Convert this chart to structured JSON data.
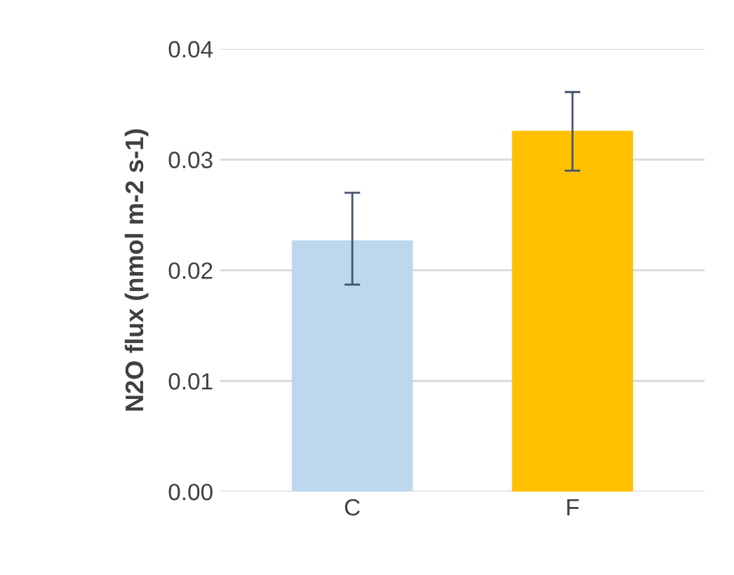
{
  "chart_data": {
    "type": "bar",
    "ylabel": "N2O flux (nmol m-2 s-1)",
    "categories": [
      "C",
      "F"
    ],
    "values": [
      0.0227,
      0.0326
    ],
    "colors": [
      "#bdd7ee",
      "#ffc000"
    ],
    "errors": [
      [
        0.0187,
        0.027
      ],
      [
        0.029,
        0.0361
      ]
    ],
    "ylim": [
      0,
      0.04
    ],
    "yticks": [
      {
        "value": 0,
        "label": "0.00"
      },
      {
        "value": 0.01,
        "label": "0.01"
      },
      {
        "value": 0.02,
        "label": "0.02"
      },
      {
        "value": 0.03,
        "label": "0.03"
      },
      {
        "value": 0.04,
        "label": "0.04"
      }
    ],
    "grid": "y"
  }
}
